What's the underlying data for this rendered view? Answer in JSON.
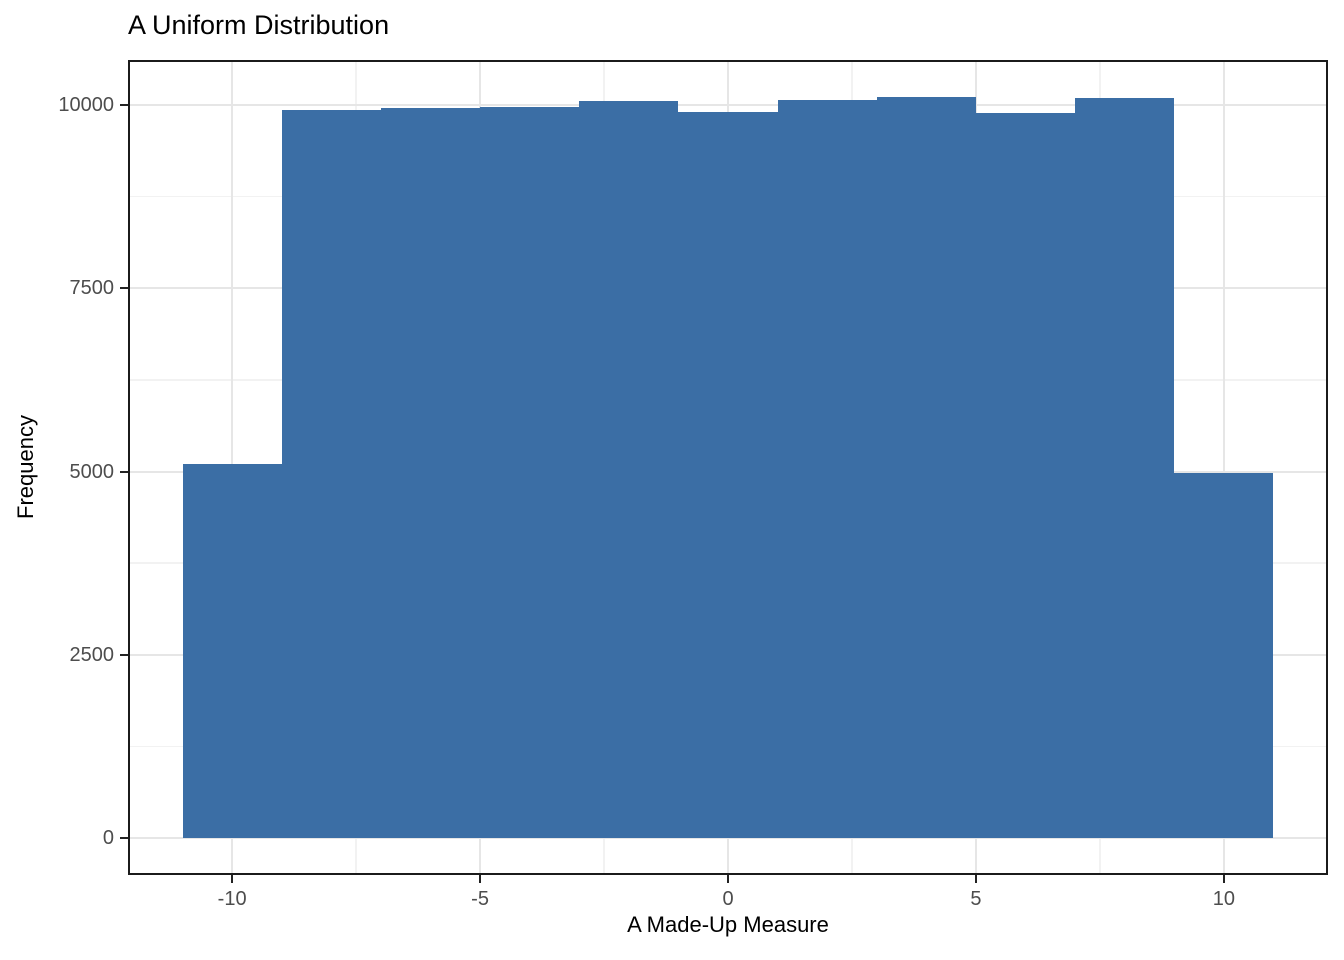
{
  "title": "A Uniform Distribution",
  "chart_data": {
    "type": "bar",
    "subtype": "histogram",
    "title": "A Uniform Distribution",
    "xlabel": "A Made-Up Measure",
    "ylabel": "Frequency",
    "bin_width": 2,
    "bin_centers": [
      -10,
      -8,
      -6,
      -4,
      -2,
      0,
      2,
      4,
      6,
      8,
      10
    ],
    "values": [
      5100,
      9930,
      9960,
      9970,
      10050,
      9900,
      10070,
      10110,
      9890,
      10100,
      4980
    ],
    "x_range": [
      -11,
      11
    ],
    "y_range": [
      0,
      10110
    ],
    "x_ticks": [
      -10,
      -5,
      0,
      5,
      10
    ],
    "x_tick_labels": [
      "-10",
      "-5",
      "0",
      "5",
      "10"
    ],
    "y_ticks": [
      0,
      2500,
      5000,
      7500,
      10000
    ],
    "y_tick_labels": [
      "0",
      "2500",
      "5000",
      "7500",
      "10000"
    ],
    "x_minor_ticks": [
      -7.5,
      -2.5,
      2.5,
      7.5
    ],
    "y_minor_ticks": [
      1250,
      3750,
      6250,
      8750
    ],
    "grid": "major-and-minor",
    "legend": "none",
    "colors": {
      "bar_fill": "#3B6EA5",
      "major_grid": "#E6E6E6",
      "minor_grid": "#F2F2F2",
      "panel_border": "#1B1B1B",
      "tick_mark": "#222222",
      "axis_text": "#4D4D4D",
      "axis_title": "#000000",
      "title_text": "#000000",
      "background": "#FFFFFF"
    }
  }
}
